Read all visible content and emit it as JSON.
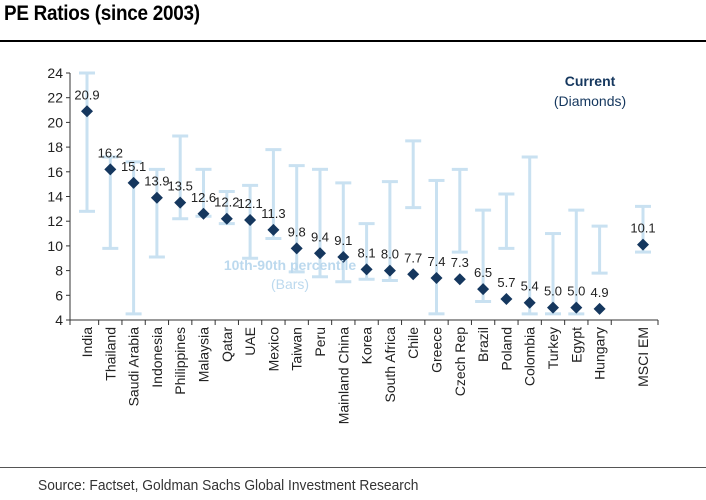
{
  "title": "PE Ratios (since 2003)",
  "source": "Source: Factset, Goldman Sachs Global Investment Research",
  "chart_data": {
    "type": "scatter",
    "ylim": [
      4,
      24
    ],
    "yticks": [
      4,
      6,
      8,
      10,
      12,
      14,
      16,
      18,
      20,
      22,
      24
    ],
    "grid": false,
    "categories": [
      "India",
      "Thailand",
      "Saudi Arabia",
      "Indonesia",
      "Philippines",
      "Malaysia",
      "Qatar",
      "UAE",
      "Mexico",
      "Taiwan",
      "Peru",
      "Mainland China",
      "Korea",
      "South Africa",
      "Chile",
      "Greece",
      "Czech Rep",
      "Brazil",
      "Poland",
      "Colombia",
      "Turkey",
      "Egypt",
      "Hungary",
      "MSCI EM"
    ],
    "current": [
      20.9,
      16.2,
      15.1,
      13.9,
      13.5,
      12.6,
      12.2,
      12.1,
      11.3,
      9.8,
      9.4,
      9.1,
      8.1,
      8.0,
      7.7,
      7.4,
      7.3,
      6.5,
      5.7,
      5.4,
      5.0,
      5.0,
      4.9,
      10.1
    ],
    "current_labels": [
      "20.9",
      "16.2",
      "15.1",
      "13.9",
      "13.5",
      "12.6",
      "12.2",
      "12.1",
      "11.3",
      "9.8",
      "9.4",
      "9.1",
      "8.1",
      "8.0",
      "7.7",
      "7.4",
      "7.3",
      "6.5",
      "5.7",
      "5.4",
      "5.0",
      "5.0",
      "4.9",
      "10.1"
    ],
    "p10": [
      12.8,
      9.8,
      4.5,
      9.1,
      12.2,
      12.4,
      11.8,
      9.0,
      10.6,
      7.9,
      7.5,
      7.1,
      7.3,
      7.2,
      13.1,
      4.5,
      9.5,
      5.5,
      9.8,
      4.5,
      4.5,
      4.5,
      7.8,
      9.5
    ],
    "p90": [
      24.0,
      17.2,
      16.8,
      16.2,
      18.9,
      16.2,
      14.4,
      14.9,
      17.8,
      16.5,
      16.2,
      15.1,
      11.8,
      15.2,
      18.5,
      15.3,
      16.2,
      12.9,
      14.2,
      17.2,
      11.0,
      12.9,
      11.6,
      13.2
    ],
    "legend": {
      "current_title": "Current",
      "current_sub": "(Diamonds)",
      "range_title": "10th-90th percentile",
      "range_sub": "(Bars)"
    },
    "colors": {
      "diamond": "#15375e",
      "bars": "#c9e1f1",
      "range_text": "#bcd9ee",
      "axis": "#333333"
    }
  }
}
